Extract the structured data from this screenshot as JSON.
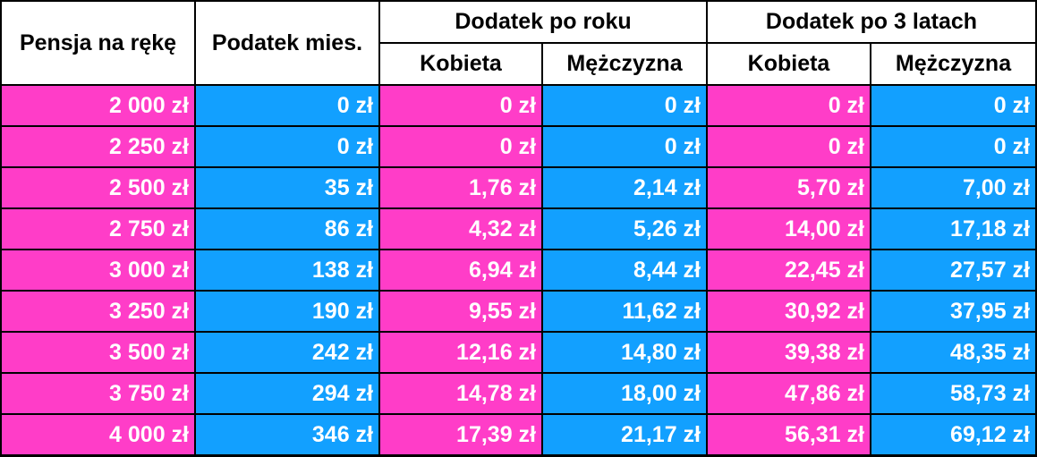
{
  "table": {
    "headers": {
      "salary": "Pensja na rękę",
      "tax": "Podatek mies.",
      "groups": [
        {
          "title": "Dodatek po roku",
          "sub": [
            "Kobieta",
            "Mężczyzna"
          ]
        },
        {
          "title": "Dodatek po 3 latach",
          "sub": [
            "Kobieta",
            "Mężczyzna"
          ]
        }
      ]
    },
    "rows": [
      [
        "2 000 zł",
        "0 zł",
        "0 zł",
        "0 zł",
        "0 zł",
        "0 zł"
      ],
      [
        "2 250 zł",
        "0 zł",
        "0 zł",
        "0 zł",
        "0 zł",
        "0 zł"
      ],
      [
        "2 500 zł",
        "35 zł",
        "1,76 zł",
        "2,14 zł",
        "5,70 zł",
        "7,00 zł"
      ],
      [
        "2 750 zł",
        "86 zł",
        "4,32 zł",
        "5,26 zł",
        "14,00 zł",
        "17,18 zł"
      ],
      [
        "3 000 zł",
        "138 zł",
        "6,94 zł",
        "8,44 zł",
        "22,45 zł",
        "27,57 zł"
      ],
      [
        "3 250 zł",
        "190 zł",
        "9,55 zł",
        "11,62 zł",
        "30,92 zł",
        "37,95 zł"
      ],
      [
        "3 500 zł",
        "242 zł",
        "12,16 zł",
        "14,80 zł",
        "39,38 zł",
        "48,35 zł"
      ],
      [
        "3 750 zł",
        "294 zł",
        "14,78 zł",
        "18,00 zł",
        "47,86 zł",
        "58,73 zł"
      ],
      [
        "4 000 zł",
        "346 zł",
        "17,39 zł",
        "21,17 zł",
        "56,31 zł",
        "69,12 zł"
      ]
    ]
  }
}
